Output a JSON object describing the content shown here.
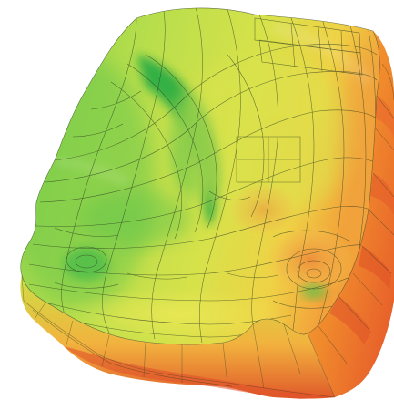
{
  "image": {
    "subject": "3d-mesh-surface",
    "palette": {
      "background": "#ffffff",
      "low": "#27b14c",
      "mid": "#cfe24a",
      "high": "#f28a2b",
      "max": "#e35328",
      "wire": "#2b3a1f"
    }
  }
}
